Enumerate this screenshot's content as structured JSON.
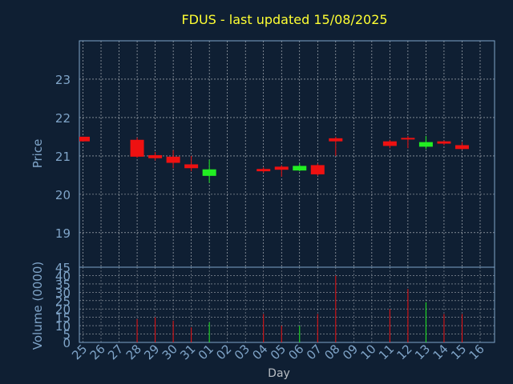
{
  "chart_data": {
    "type": "candlestick",
    "title": "FDUS - last updated 15/08/2025",
    "xlabel": "Day",
    "price_panel": {
      "ylabel": "Price",
      "ylim": [
        18.1,
        24
      ],
      "yticks": [
        "19",
        "20",
        "21",
        "22",
        "23"
      ],
      "grid": true
    },
    "volume_panel": {
      "ylabel": "Volume (0000)",
      "ylim": [
        0,
        45
      ],
      "yticks": [
        "0",
        "5",
        "10",
        "15",
        "20",
        "25",
        "30",
        "35",
        "40",
        "45"
      ],
      "grid": true
    },
    "x_ticks": [
      "25",
      "26",
      "27",
      "28",
      "29",
      "30",
      "31",
      "01",
      "02",
      "03",
      "04",
      "05",
      "06",
      "07",
      "08",
      "09",
      "10",
      "11",
      "12",
      "13",
      "14",
      "15",
      "16"
    ],
    "candles": [
      {
        "day": "25",
        "open": 21.5,
        "close": 21.38,
        "high": 21.5,
        "low": 21.38,
        "volume": 0
      },
      {
        "day": "28",
        "open": 21.42,
        "close": 20.98,
        "high": 21.48,
        "low": 20.95,
        "volume": 14
      },
      {
        "day": "29",
        "open": 21.02,
        "close": 20.94,
        "high": 21.1,
        "low": 20.88,
        "volume": 15
      },
      {
        "day": "30",
        "open": 20.98,
        "close": 20.82,
        "high": 21.15,
        "low": 20.68,
        "volume": 13
      },
      {
        "day": "31",
        "open": 20.78,
        "close": 20.68,
        "high": 21.0,
        "low": 20.6,
        "volume": 9
      },
      {
        "day": "01",
        "open": 20.48,
        "close": 20.65,
        "high": 20.9,
        "low": 20.3,
        "volume": 12
      },
      {
        "day": "04",
        "open": 20.66,
        "close": 20.6,
        "high": 20.7,
        "low": 20.56,
        "volume": 17
      },
      {
        "day": "05",
        "open": 20.72,
        "close": 20.64,
        "high": 20.76,
        "low": 20.46,
        "volume": 10
      },
      {
        "day": "06",
        "open": 20.62,
        "close": 20.74,
        "high": 20.8,
        "low": 20.6,
        "volume": 10
      },
      {
        "day": "07",
        "open": 20.76,
        "close": 20.52,
        "high": 20.8,
        "low": 20.48,
        "volume": 17
      },
      {
        "day": "08",
        "open": 21.46,
        "close": 21.38,
        "high": 21.5,
        "low": 21.0,
        "volume": 40
      },
      {
        "day": "11",
        "open": 21.38,
        "close": 21.26,
        "high": 21.42,
        "low": 21.2,
        "volume": 20
      },
      {
        "day": "12",
        "open": 21.47,
        "close": 21.44,
        "high": 21.52,
        "low": 21.2,
        "volume": 32
      },
      {
        "day": "13",
        "open": 21.24,
        "close": 21.36,
        "high": 21.52,
        "low": 21.18,
        "volume": 24
      },
      {
        "day": "14",
        "open": 21.38,
        "close": 21.32,
        "high": 21.4,
        "low": 21.28,
        "volume": 17
      },
      {
        "day": "15",
        "open": 21.28,
        "close": 21.18,
        "high": 21.36,
        "low": 21.16,
        "volume": 17
      }
    ],
    "colors": {
      "background": "#0f1f33",
      "axis": "#7fa4c8",
      "grid": "#ffffff",
      "up": "#22ee22",
      "down": "#ee1111",
      "title": "#ffff33"
    }
  }
}
